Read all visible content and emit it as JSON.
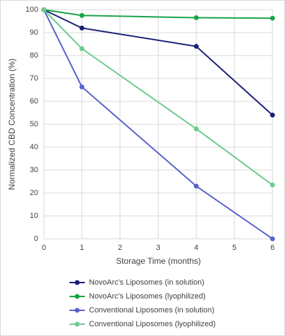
{
  "chart_data": {
    "type": "line",
    "x_label": "Storage Time (months)",
    "y_label": "Normalized CBD Concentration (%)",
    "x": [
      0,
      1,
      4,
      6
    ],
    "series": [
      {
        "name": "NovoArc's Liposomes (in solution)",
        "color": "#1c1f78",
        "values": [
          100,
          92,
          84,
          54
        ]
      },
      {
        "name": "NovoArc's Liposomes (lyophilized)",
        "color": "#17a347",
        "values": [
          100,
          97.5,
          96.5,
          96.3
        ]
      },
      {
        "name": "Conventional Liposomes (in solution)",
        "color": "#5a62c8",
        "values": [
          100,
          66.3,
          23,
          0
        ]
      },
      {
        "name": "Conventional Liposomes (lyophilized)",
        "color": "#6ccb8e",
        "values": [
          100,
          83,
          48,
          23.5
        ]
      }
    ],
    "xlim": [
      0,
      6
    ],
    "xticks": [
      0,
      1,
      2,
      3,
      4,
      5,
      6
    ],
    "ylim": [
      0,
      100
    ],
    "yticks": [
      0,
      10,
      20,
      30,
      40,
      50,
      60,
      70,
      80,
      90,
      100
    ],
    "grid": true,
    "legend": "bottom"
  }
}
